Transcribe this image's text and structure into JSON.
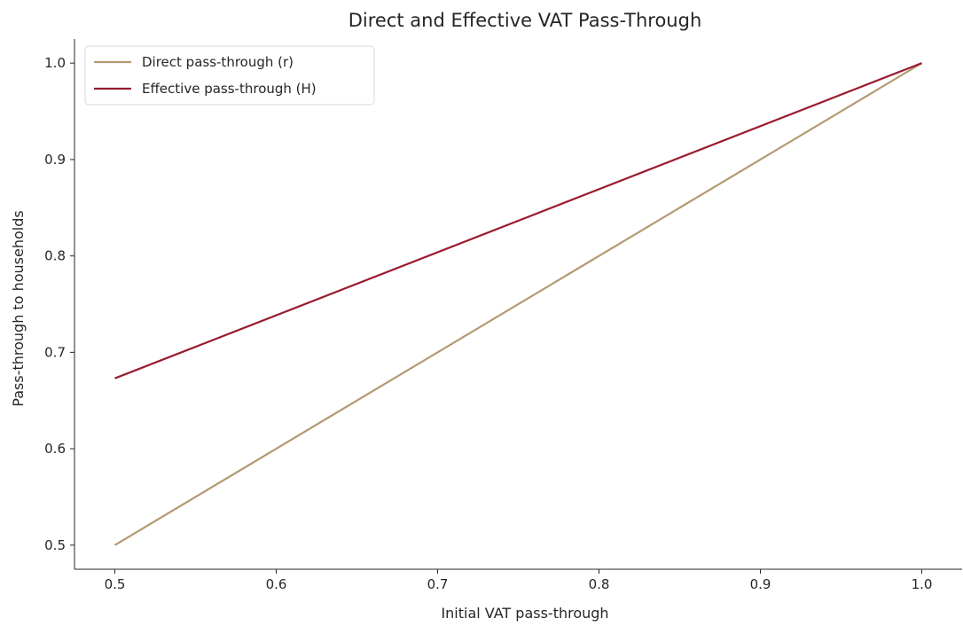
{
  "chart_data": {
    "type": "line",
    "title": "Direct and Effective VAT Pass-Through",
    "xlabel": "Initial VAT pass-through",
    "ylabel": "Pass-through to households",
    "xlim": [
      0.475,
      1.025
    ],
    "ylim": [
      0.475,
      1.025
    ],
    "xticks": [
      0.5,
      0.6,
      0.7,
      0.8,
      0.9,
      1.0
    ],
    "xtick_labels": [
      "0.5",
      "0.6",
      "0.7",
      "0.8",
      "0.9",
      "1.0"
    ],
    "yticks": [
      0.5,
      0.6,
      0.7,
      0.8,
      0.9,
      1.0
    ],
    "ytick_labels": [
      "0.5",
      "0.6",
      "0.7",
      "0.8",
      "0.9",
      "1.0"
    ],
    "grid": false,
    "legend_position": "top-left",
    "series": [
      {
        "name": "Direct pass-through (r)",
        "color": "#b49a72",
        "x": [
          0.5,
          1.0
        ],
        "y": [
          0.5,
          1.0
        ]
      },
      {
        "name": "Effective pass-through (H)",
        "color": "#9b1b30",
        "x": [
          0.5,
          1.0
        ],
        "y": [
          0.673,
          1.0
        ]
      }
    ]
  }
}
